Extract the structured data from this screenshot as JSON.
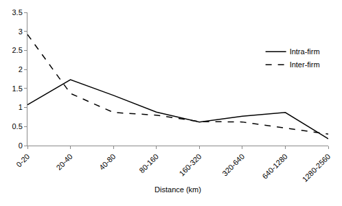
{
  "chart_data": {
    "type": "line",
    "x_label": "Distance (km)",
    "categories": [
      "0-20",
      "20-40",
      "40-80",
      "80-160",
      "160-320",
      "320-640",
      "640-1280",
      "1280-2560"
    ],
    "series": [
      {
        "name": "Intra-firm",
        "color": "#000000",
        "line_style": "solid",
        "values": [
          1.07,
          1.73,
          1.32,
          0.88,
          0.62,
          0.77,
          0.87,
          0.18
        ]
      },
      {
        "name": "Inter-firm",
        "color": "#000000",
        "line_style": "dashed",
        "values": [
          2.92,
          1.37,
          0.87,
          0.8,
          0.63,
          0.62,
          0.46,
          0.3
        ]
      }
    ],
    "ylim": [
      0,
      3.5
    ],
    "yticks": [
      0,
      0.5,
      1,
      1.5,
      2,
      2.5,
      3,
      3.5
    ],
    "grid": false,
    "legend": "right"
  }
}
